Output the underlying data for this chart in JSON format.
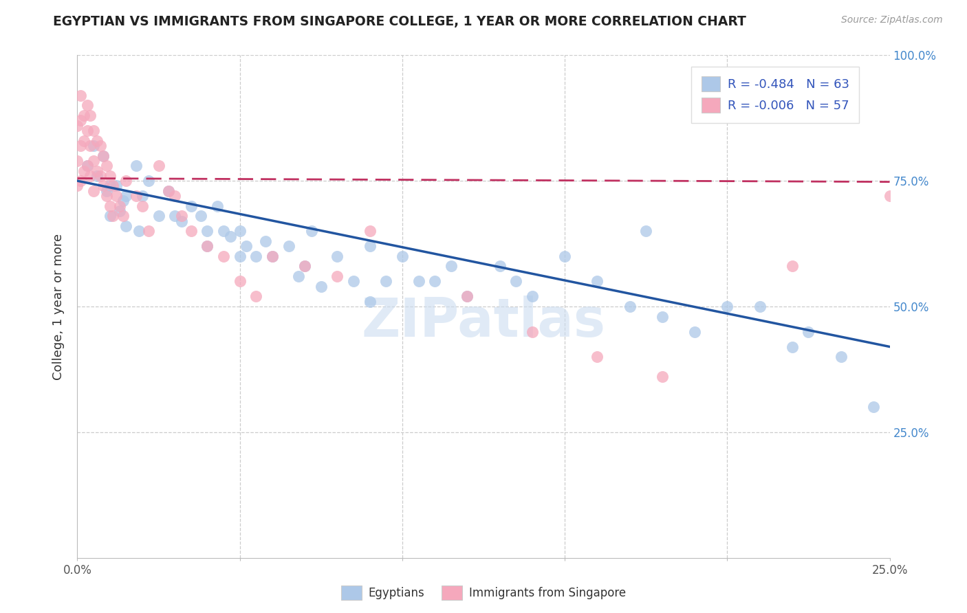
{
  "title": "EGYPTIAN VS IMMIGRANTS FROM SINGAPORE COLLEGE, 1 YEAR OR MORE CORRELATION CHART",
  "source": "Source: ZipAtlas.com",
  "ylabel": "College, 1 year or more",
  "xlim": [
    0.0,
    0.25
  ],
  "ylim": [
    0.0,
    1.0
  ],
  "blue_R": -0.484,
  "blue_N": 63,
  "pink_R": -0.006,
  "pink_N": 57,
  "blue_color": "#adc8e8",
  "pink_color": "#f5a8bc",
  "blue_line_color": "#2255a0",
  "pink_line_color": "#c03060",
  "watermark": "ZIPatlas",
  "background_color": "#ffffff",
  "grid_color": "#cccccc",
  "ytick_color": "#4488cc",
  "legend_text_color": "#3355bb",
  "blue_scatter_x": [
    0.003,
    0.005,
    0.006,
    0.008,
    0.009,
    0.01,
    0.01,
    0.012,
    0.013,
    0.014,
    0.015,
    0.015,
    0.018,
    0.019,
    0.02,
    0.022,
    0.025,
    0.028,
    0.03,
    0.032,
    0.035,
    0.038,
    0.04,
    0.04,
    0.043,
    0.045,
    0.047,
    0.05,
    0.05,
    0.052,
    0.055,
    0.058,
    0.06,
    0.065,
    0.068,
    0.07,
    0.072,
    0.075,
    0.08,
    0.085,
    0.09,
    0.09,
    0.095,
    0.1,
    0.105,
    0.11,
    0.115,
    0.12,
    0.13,
    0.135,
    0.14,
    0.15,
    0.16,
    0.17,
    0.175,
    0.18,
    0.19,
    0.2,
    0.21,
    0.22,
    0.225,
    0.235,
    0.245
  ],
  "blue_scatter_y": [
    0.78,
    0.82,
    0.76,
    0.8,
    0.73,
    0.74,
    0.68,
    0.74,
    0.69,
    0.71,
    0.72,
    0.66,
    0.78,
    0.65,
    0.72,
    0.75,
    0.68,
    0.73,
    0.68,
    0.67,
    0.7,
    0.68,
    0.62,
    0.65,
    0.7,
    0.65,
    0.64,
    0.65,
    0.6,
    0.62,
    0.6,
    0.63,
    0.6,
    0.62,
    0.56,
    0.58,
    0.65,
    0.54,
    0.6,
    0.55,
    0.62,
    0.51,
    0.55,
    0.6,
    0.55,
    0.55,
    0.58,
    0.52,
    0.58,
    0.55,
    0.52,
    0.6,
    0.55,
    0.5,
    0.65,
    0.48,
    0.45,
    0.5,
    0.5,
    0.42,
    0.45,
    0.4,
    0.3
  ],
  "pink_scatter_x": [
    0.0,
    0.0,
    0.0,
    0.001,
    0.001,
    0.001,
    0.001,
    0.002,
    0.002,
    0.002,
    0.003,
    0.003,
    0.003,
    0.004,
    0.004,
    0.004,
    0.005,
    0.005,
    0.005,
    0.006,
    0.006,
    0.007,
    0.007,
    0.008,
    0.008,
    0.009,
    0.009,
    0.01,
    0.01,
    0.011,
    0.011,
    0.012,
    0.013,
    0.014,
    0.015,
    0.018,
    0.02,
    0.022,
    0.025,
    0.028,
    0.03,
    0.032,
    0.035,
    0.04,
    0.045,
    0.05,
    0.055,
    0.06,
    0.07,
    0.08,
    0.09,
    0.12,
    0.14,
    0.16,
    0.18,
    0.22,
    0.25
  ],
  "pink_scatter_y": [
    0.86,
    0.79,
    0.74,
    0.92,
    0.87,
    0.82,
    0.75,
    0.88,
    0.83,
    0.77,
    0.9,
    0.85,
    0.78,
    0.88,
    0.82,
    0.76,
    0.85,
    0.79,
    0.73,
    0.83,
    0.77,
    0.82,
    0.76,
    0.8,
    0.74,
    0.78,
    0.72,
    0.76,
    0.7,
    0.74,
    0.68,
    0.72,
    0.7,
    0.68,
    0.75,
    0.72,
    0.7,
    0.65,
    0.78,
    0.73,
    0.72,
    0.68,
    0.65,
    0.62,
    0.6,
    0.55,
    0.52,
    0.6,
    0.58,
    0.56,
    0.65,
    0.52,
    0.45,
    0.4,
    0.36,
    0.58,
    0.72
  ],
  "blue_line_x0": 0.0,
  "blue_line_y0": 0.75,
  "blue_line_x1": 0.25,
  "blue_line_y1": 0.42,
  "pink_line_x0": 0.0,
  "pink_line_y0": 0.755,
  "pink_line_x1": 0.25,
  "pink_line_y1": 0.748
}
